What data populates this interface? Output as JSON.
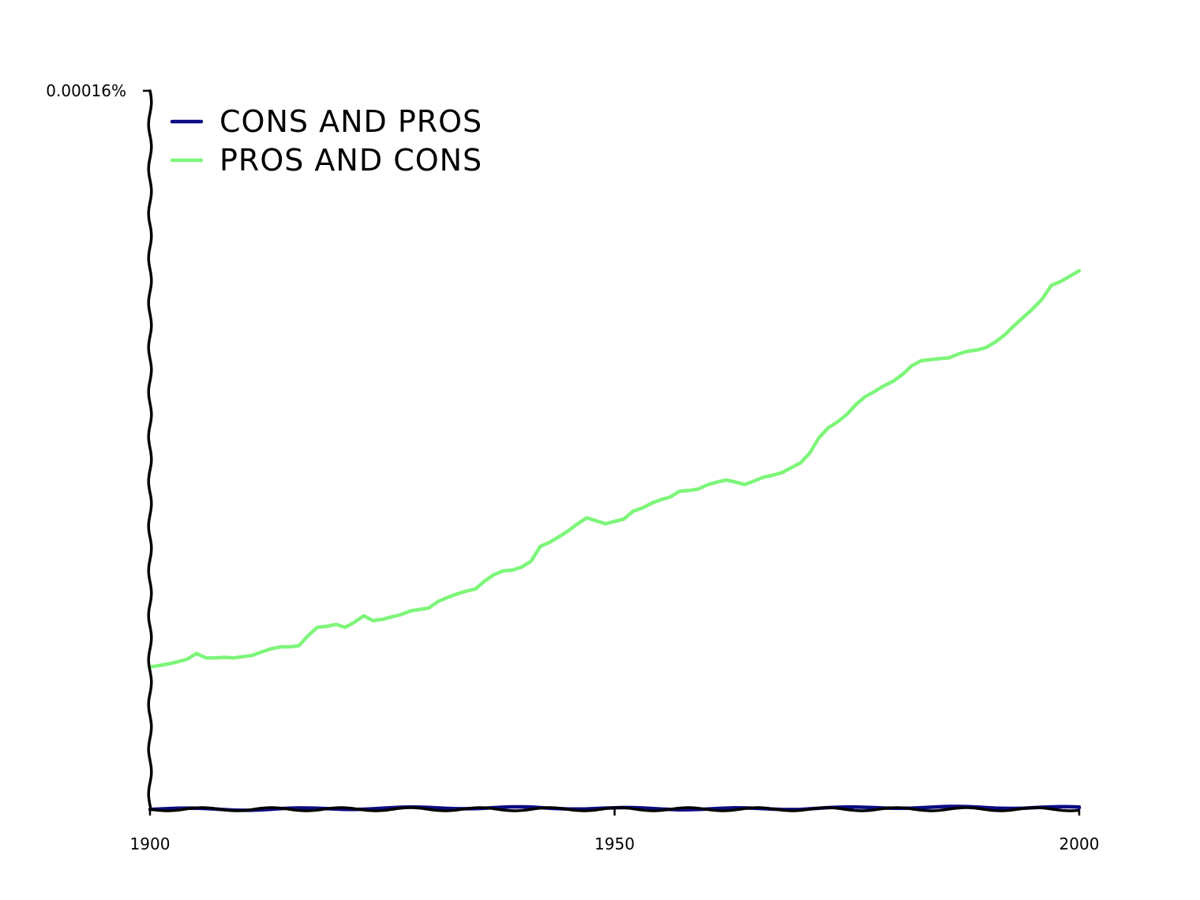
{
  "chart_data": {
    "type": "line",
    "title": "",
    "xlabel": "",
    "ylabel": "",
    "xlim": [
      1900,
      2000
    ],
    "ylim": [
      0,
      0.00016
    ],
    "x_ticks": [
      "1900",
      "1950",
      "2000"
    ],
    "y_ticks": [
      "0.00016%"
    ],
    "legend_placement": "top-left",
    "grid": false,
    "series": [
      {
        "name": "CONS AND PROS",
        "color": "#0b0b84",
        "x": [
          1900,
          1910,
          1920,
          1930,
          1940,
          1950,
          1960,
          1970,
          1980,
          1990,
          2000
        ],
        "values": [
          1e-07,
          1e-07,
          2e-07,
          2e-07,
          2e-07,
          2e-07,
          2e-07,
          2e-07,
          3e-07,
          3e-07,
          4e-07
        ]
      },
      {
        "name": "PROS AND CONS",
        "color": "#7ef57a",
        "x": [
          1900,
          1901,
          1902,
          1903,
          1904,
          1905,
          1906,
          1907,
          1908,
          1909,
          1910,
          1911,
          1912,
          1913,
          1914,
          1915,
          1916,
          1917,
          1918,
          1919,
          1920,
          1921,
          1922,
          1923,
          1924,
          1925,
          1926,
          1927,
          1928,
          1929,
          1930,
          1931,
          1932,
          1933,
          1934,
          1935,
          1936,
          1937,
          1938,
          1939,
          1940,
          1941,
          1942,
          1943,
          1944,
          1945,
          1946,
          1947,
          1948,
          1949,
          1950,
          1951,
          1952,
          1953,
          1954,
          1955,
          1956,
          1957,
          1958,
          1959,
          1960,
          1961,
          1962,
          1963,
          1964,
          1965,
          1966,
          1967,
          1968,
          1969,
          1970,
          1971,
          1972,
          1973,
          1974,
          1975,
          1976,
          1977,
          1978,
          1979,
          1980,
          1981,
          1982,
          1983,
          1984,
          1985,
          1986,
          1987,
          1988,
          1989,
          1990,
          1991,
          1992,
          1993,
          1994,
          1995,
          1996,
          1997,
          1998,
          1999,
          2000
        ],
        "values": [
          3.18e-05,
          3.21e-05,
          3.23e-05,
          3.27e-05,
          3.34e-05,
          3.48e-05,
          3.38e-05,
          3.36e-05,
          3.37e-05,
          3.37e-05,
          3.41e-05,
          3.43e-05,
          3.49e-05,
          3.56e-05,
          3.62e-05,
          3.63e-05,
          3.64e-05,
          3.85e-05,
          4.04e-05,
          4.08e-05,
          4.13e-05,
          4.05e-05,
          4.15e-05,
          4.3e-05,
          4.21e-05,
          4.24e-05,
          4.28e-05,
          4.32e-05,
          4.41e-05,
          4.46e-05,
          4.49e-05,
          4.62e-05,
          4.7e-05,
          4.79e-05,
          4.87e-05,
          4.91e-05,
          5.07e-05,
          5.21e-05,
          5.31e-05,
          5.34e-05,
          5.4e-05,
          5.51e-05,
          5.84e-05,
          5.95e-05,
          6.08e-05,
          6.2e-05,
          6.34e-05,
          6.48e-05,
          6.43e-05,
          6.37e-05,
          6.41e-05,
          6.45e-05,
          6.63e-05,
          6.72e-05,
          6.83e-05,
          6.89e-05,
          6.94e-05,
          7.08e-05,
          7.11e-05,
          7.14e-05,
          7.22e-05,
          7.27e-05,
          7.33e-05,
          7.3e-05,
          7.24e-05,
          7.3e-05,
          7.38e-05,
          7.44e-05,
          7.51e-05,
          7.61e-05,
          7.7e-05,
          7.92e-05,
          8.28e-05,
          8.51e-05,
          8.63e-05,
          8.78e-05,
          9.01e-05,
          9.2e-05,
          9.32e-05,
          9.43e-05,
          9.52e-05,
          9.68e-05,
          9.89e-05,
          0.0001,
          0.0001001,
          0.0001002,
          0.0001005,
          0.0001015,
          0.0001021,
          0.0001022,
          0.0001027,
          0.0001041,
          0.0001058,
          0.0001078,
          0.0001095,
          0.0001113,
          0.0001136,
          0.0001168,
          0.0001176,
          0.0001186,
          0.0001198
        ]
      }
    ]
  }
}
